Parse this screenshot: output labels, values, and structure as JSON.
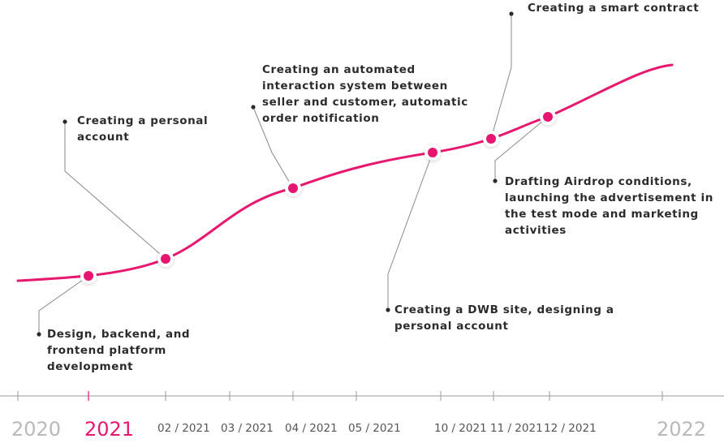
{
  "milestones": [
    {
      "text": "Design, backend, and\nfrontend platform\ndevelopment"
    },
    {
      "text": "Creating a personal\naccount"
    },
    {
      "text": "Creating an automated\ninteraction system between\nseller and customer, automatic\norder notification"
    },
    {
      "text": "Creating a DWB site, designing a\npersonal account"
    },
    {
      "text": "Creating a smart contract"
    },
    {
      "text": "Drafting Airdrop conditions,\nlaunching the advertisement in\nthe test mode and marketing\nactivities"
    }
  ],
  "axis": {
    "labels": [
      "2020",
      "2021",
      "02 / 2021",
      "03 / 2021",
      "04 / 2021",
      "05 / 2021",
      "10 / 2021",
      "11 / 2021",
      "12 / 2021",
      "2022"
    ],
    "active": "2021"
  },
  "colors": {
    "accent": "#e6186f",
    "leader": "#8a8a8a",
    "axis": "#9a9a9a"
  }
}
